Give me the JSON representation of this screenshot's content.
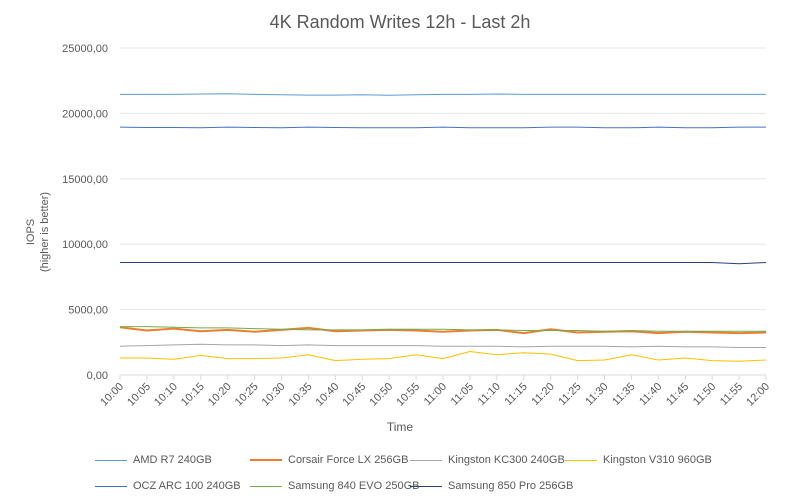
{
  "chart_data": {
    "type": "line",
    "title": "4K Random Writes 12h - Last 2h",
    "xlabel": "Time",
    "ylabel_line1": "IOPS",
    "ylabel_line2": "(higher is better)",
    "ylim": [
      0,
      25000
    ],
    "y_ticks": [
      "0,00",
      "5000,00",
      "10000,00",
      "15000,00",
      "20000,00",
      "25000,00"
    ],
    "y_tick_values": [
      0,
      5000,
      10000,
      15000,
      20000,
      25000
    ],
    "grid": true,
    "legend_position": "bottom",
    "x": [
      "10:00",
      "10:05",
      "10:10",
      "10:15",
      "10:20",
      "10:25",
      "10:30",
      "10:35",
      "10:40",
      "10:45",
      "10:50",
      "10:55",
      "11:00",
      "11:05",
      "11:10",
      "11:15",
      "11:20",
      "11:25",
      "11:30",
      "11:35",
      "11:40",
      "11:45",
      "11:50",
      "11:55",
      "12:00"
    ],
    "series": [
      {
        "name": "AMD R7 240GB",
        "color": "#5b9bd5",
        "width": 1,
        "values": [
          21450,
          21450,
          21450,
          21480,
          21500,
          21450,
          21430,
          21400,
          21400,
          21420,
          21380,
          21420,
          21450,
          21450,
          21480,
          21450,
          21450,
          21450,
          21450,
          21450,
          21450,
          21450,
          21450,
          21450,
          21450
        ]
      },
      {
        "name": "Corsair Force LX 256GB",
        "color": "#ed7d31",
        "width": 2,
        "values": [
          3650,
          3400,
          3550,
          3350,
          3450,
          3300,
          3450,
          3600,
          3350,
          3400,
          3450,
          3400,
          3300,
          3400,
          3450,
          3200,
          3500,
          3250,
          3300,
          3350,
          3200,
          3300,
          3250,
          3200,
          3250
        ]
      },
      {
        "name": "Kingston KC300 240GB",
        "color": "#a5a5a5",
        "width": 1,
        "values": [
          2200,
          2250,
          2300,
          2350,
          2300,
          2300,
          2250,
          2300,
          2250,
          2250,
          2250,
          2250,
          2200,
          2200,
          2200,
          2150,
          2200,
          2200,
          2200,
          2150,
          2200,
          2150,
          2150,
          2100,
          2100
        ]
      },
      {
        "name": "Kingston V310 960GB",
        "color": "#ffc000",
        "width": 1,
        "values": [
          1300,
          1300,
          1200,
          1500,
          1250,
          1250,
          1300,
          1550,
          1100,
          1200,
          1250,
          1550,
          1250,
          1800,
          1550,
          1700,
          1600,
          1100,
          1150,
          1550,
          1150,
          1300,
          1100,
          1050,
          1150
        ]
      },
      {
        "name": "OCZ ARC 100 240GB",
        "color": "#4472c4",
        "width": 1,
        "values": [
          18950,
          18920,
          18920,
          18900,
          18950,
          18920,
          18900,
          18950,
          18920,
          18900,
          18900,
          18900,
          18950,
          18900,
          18900,
          18900,
          18950,
          18950,
          18900,
          18900,
          18950,
          18900,
          18900,
          18950,
          18950
        ]
      },
      {
        "name": "Samsung 840 EVO 250GB",
        "color": "#70ad47",
        "width": 1,
        "values": [
          3700,
          3700,
          3650,
          3600,
          3600,
          3550,
          3500,
          3450,
          3450,
          3450,
          3500,
          3500,
          3500,
          3450,
          3450,
          3400,
          3400,
          3400,
          3350,
          3400,
          3350,
          3350,
          3350,
          3350,
          3350
        ]
      },
      {
        "name": "Samsung 850 Pro 256GB",
        "color": "#264478",
        "width": 1,
        "values": [
          8600,
          8600,
          8600,
          8600,
          8600,
          8600,
          8600,
          8600,
          8600,
          8600,
          8600,
          8600,
          8600,
          8600,
          8600,
          8600,
          8600,
          8600,
          8600,
          8600,
          8600,
          8600,
          8600,
          8500,
          8600
        ]
      }
    ]
  }
}
